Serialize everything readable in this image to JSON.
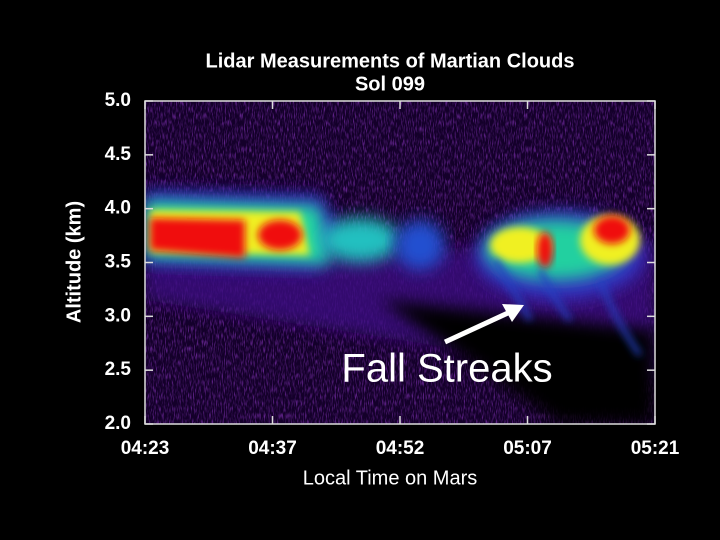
{
  "chart_data": {
    "type": "image",
    "title": "Lidar Measurements of Martian Clouds",
    "subtitle": "Sol 099",
    "x_label": "Local Time on Mars",
    "y_label": "Altitude (km)",
    "categories": [
      "04:23",
      "04:37",
      "04:52",
      "05:07",
      "05:21"
    ],
    "ylim": [
      2,
      5
    ],
    "yticks": [
      {
        "value": 2,
        "label": "2.0"
      },
      {
        "value": 2.5,
        "label": "2.5"
      },
      {
        "value": 3,
        "label": "3.0"
      },
      {
        "value": 3.5,
        "label": "3.5"
      },
      {
        "value": 4,
        "label": "4.0"
      },
      {
        "value": 4.5,
        "label": "4.5"
      },
      {
        "value": 5,
        "label": "5.0"
      }
    ],
    "annotation": "Fall Streaks"
  }
}
